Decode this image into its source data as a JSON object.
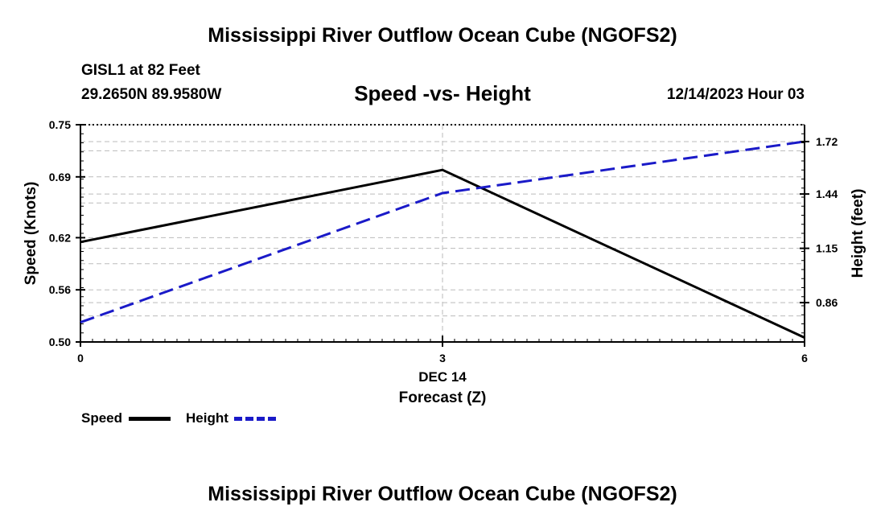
{
  "header": {
    "title": "Mississippi River Outflow Ocean Cube (NGOFS2)",
    "station": "GISL1 at 82 Feet",
    "coordinates": "29.2650N  89.9580W",
    "subtitle": "Speed -vs- Height",
    "datetime": "12/14/2023 Hour 03"
  },
  "footer": {
    "title": "Mississippi River Outflow Ocean Cube (NGOFS2)"
  },
  "chart_data": {
    "type": "line",
    "title": "Speed -vs- Height",
    "xlabel": "Forecast (Z)",
    "x_date_label": "DEC 14",
    "x": [
      0,
      3,
      6
    ],
    "xlim": [
      0,
      6
    ],
    "xticks": [
      0,
      3,
      6
    ],
    "ylabel_left": "Speed (Knots)",
    "ylim_left": [
      0.5,
      0.75
    ],
    "yticks_left": [
      "0.50",
      "0.56",
      "0.62",
      "0.69",
      "0.75"
    ],
    "ylabel_right": "Height (feet)",
    "ylim_right": [
      0.65,
      1.81
    ],
    "yticks_right": [
      "0.86",
      "1.15",
      "1.44",
      "1.72"
    ],
    "grid": true,
    "series": [
      {
        "name": "Speed",
        "axis": "left",
        "color": "#000000",
        "dash": "solid",
        "values": [
          0.615,
          0.698,
          0.505
        ]
      },
      {
        "name": "Height",
        "axis": "right",
        "color": "#1a1ac8",
        "dash": "dashed",
        "values": [
          0.755,
          1.445,
          1.72
        ]
      }
    ],
    "legend": {
      "placement": "bottom-left",
      "items": [
        "Speed",
        "Height"
      ]
    }
  }
}
